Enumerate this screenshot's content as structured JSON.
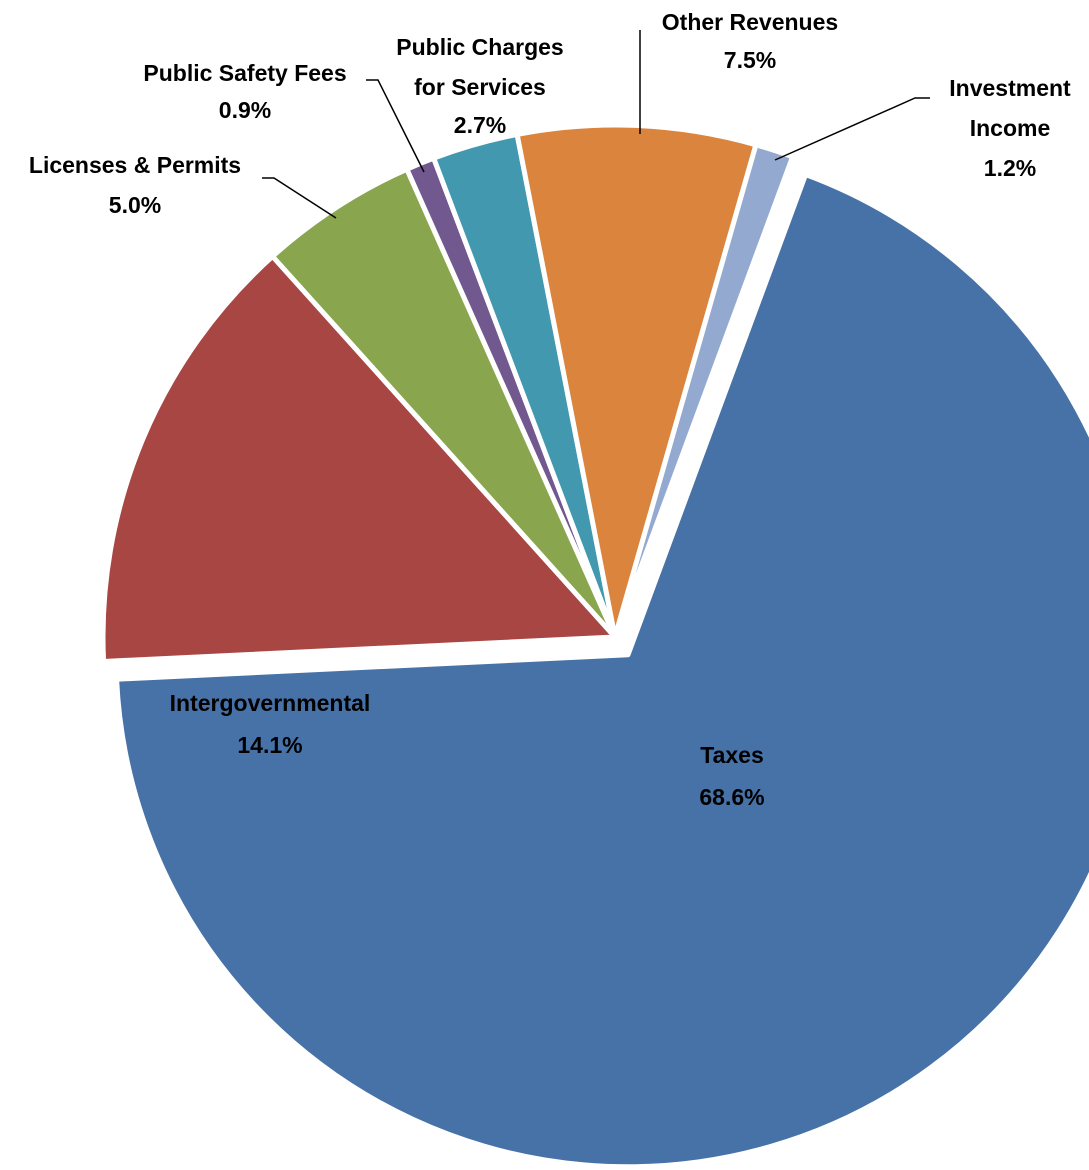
{
  "chart_data": {
    "type": "pie",
    "categories": [
      "Taxes",
      "Intergovernmental",
      "Licenses & Permits",
      "Public Safety Fees",
      "Public Charges for Services",
      "Other Revenues",
      "Investment Income"
    ],
    "values": [
      68.6,
      14.1,
      5.0,
      0.9,
      2.7,
      7.5,
      1.2
    ],
    "value_labels": [
      "68.6%",
      "14.1%",
      "5.0%",
      "0.9%",
      "2.7%",
      "7.5%",
      "1.2%"
    ],
    "colors": [
      "#4672a8",
      "#a84643",
      "#89a54e",
      "#71588f",
      "#4198af",
      "#db843d",
      "#93a9cf"
    ],
    "exploded": [
      "Taxes"
    ]
  }
}
